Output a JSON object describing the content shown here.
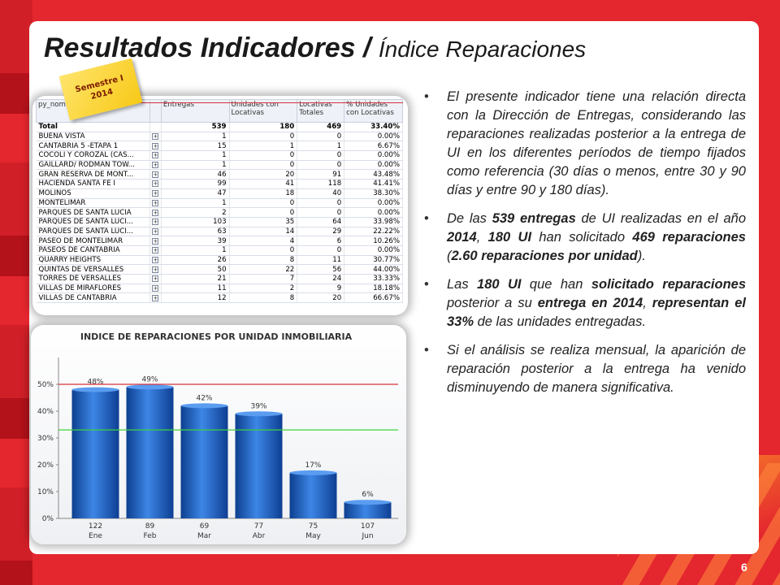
{
  "slide": {
    "title_main": "Resultados Indicadores / ",
    "title_sub": "Índice Reparaciones",
    "page_number": "6"
  },
  "note": {
    "line1": "Semestre I",
    "line2": "2014"
  },
  "table": {
    "headers": [
      "py_nombre",
      "",
      "Entregas",
      "Unidades con Locativas",
      "Locativas Totales",
      "% Unidades con Locativas"
    ],
    "rows": [
      {
        "name": "Total",
        "entregas": "539",
        "unidades": "180",
        "locativas": "469",
        "pct": "33.40%",
        "total": true
      },
      {
        "name": "BUENA VISTA",
        "entregas": "1",
        "unidades": "0",
        "locativas": "0",
        "pct": "0.00%"
      },
      {
        "name": "CANTABRIA 5 -ETAPA 1",
        "entregas": "15",
        "unidades": "1",
        "locativas": "1",
        "pct": "6.67%"
      },
      {
        "name": "COCOLI Y COROZAL (CAS...",
        "entregas": "1",
        "unidades": "0",
        "locativas": "0",
        "pct": "0.00%"
      },
      {
        "name": "GAILLARD/ RODMAN TOW...",
        "entregas": "1",
        "unidades": "0",
        "locativas": "0",
        "pct": "0.00%"
      },
      {
        "name": "GRAN RESERVA DE MONT...",
        "entregas": "46",
        "unidades": "20",
        "locativas": "91",
        "pct": "43.48%"
      },
      {
        "name": "HACIENDA SANTA FE I",
        "entregas": "99",
        "unidades": "41",
        "locativas": "118",
        "pct": "41.41%"
      },
      {
        "name": "MOLINOS",
        "entregas": "47",
        "unidades": "18",
        "locativas": "40",
        "pct": "38.30%"
      },
      {
        "name": "MONTELIMAR",
        "entregas": "1",
        "unidades": "0",
        "locativas": "0",
        "pct": "0.00%"
      },
      {
        "name": "PARQUES DE SANTA LUCIA",
        "entregas": "2",
        "unidades": "0",
        "locativas": "0",
        "pct": "0.00%"
      },
      {
        "name": "PARQUES DE SANTA LUCI...",
        "entregas": "103",
        "unidades": "35",
        "locativas": "64",
        "pct": "33.98%"
      },
      {
        "name": "PARQUES DE SANTA LUCI...",
        "entregas": "63",
        "unidades": "14",
        "locativas": "29",
        "pct": "22.22%"
      },
      {
        "name": "PASEO DE MONTELIMAR",
        "entregas": "39",
        "unidades": "4",
        "locativas": "6",
        "pct": "10.26%"
      },
      {
        "name": "PASEOS DE CANTABRIA",
        "entregas": "1",
        "unidades": "0",
        "locativas": "0",
        "pct": "0.00%"
      },
      {
        "name": "QUARRY HEIGHTS",
        "entregas": "26",
        "unidades": "8",
        "locativas": "11",
        "pct": "30.77%"
      },
      {
        "name": "QUINTAS DE VERSALLES",
        "entregas": "50",
        "unidades": "22",
        "locativas": "56",
        "pct": "44.00%"
      },
      {
        "name": "TORRES DE VERSALLES",
        "entregas": "21",
        "unidades": "7",
        "locativas": "24",
        "pct": "33.33%"
      },
      {
        "name": "VILLAS DE MIRAFLORES",
        "entregas": "11",
        "unidades": "2",
        "locativas": "9",
        "pct": "18.18%"
      },
      {
        "name": "VILLAS DE CANTABRIA",
        "entregas": "12",
        "unidades": "8",
        "locativas": "20",
        "pct": "66.67%"
      }
    ]
  },
  "chart_data": {
    "type": "bar",
    "title": "INDICE DE REPARACIONES POR UNIDAD INMOBILIARIA",
    "categories": [
      "Ene",
      "Feb",
      "Mar",
      "Abr",
      "May",
      "Jun"
    ],
    "counts": [
      "122",
      "89",
      "69",
      "77",
      "75",
      "107"
    ],
    "values": [
      48,
      49,
      42,
      39,
      17,
      6
    ],
    "value_labels": [
      "48%",
      "49%",
      "42%",
      "39%",
      "17%",
      "6%"
    ],
    "ylim": [
      0,
      60
    ],
    "yticks": [
      0,
      10,
      20,
      30,
      40,
      50
    ],
    "ytick_labels": [
      "0%",
      "10%",
      "20%",
      "30%",
      "40%",
      "50%"
    ],
    "reference_lines": [
      {
        "value": 50,
        "color": "#d8323a"
      },
      {
        "value": 33,
        "color": "#3bd23b"
      }
    ],
    "bar_color": "#1f64c8",
    "xlabel": "",
    "ylabel": ""
  },
  "bullets": [
    {
      "html_parts": [
        {
          "t": "El presente indicador tiene una relación directa con la Dirección de Entregas, considerando las reparaciones realizadas posterior a la entrega de UI en los diferentes períodos de tiempo fijados como referencia (30 días o menos, entre 30 y 90 días y entre 90 y 180 días).",
          "b": false
        }
      ]
    },
    {
      "html_parts": [
        {
          "t": "De las ",
          "b": false
        },
        {
          "t": "539 entregas",
          "b": true
        },
        {
          "t": " de UI realizadas en el año ",
          "b": false
        },
        {
          "t": "2014",
          "b": true
        },
        {
          "t": ", ",
          "b": false
        },
        {
          "t": "180 UI",
          "b": true
        },
        {
          "t": " han solicitado ",
          "b": false
        },
        {
          "t": "469 reparaciones",
          "b": true
        },
        {
          "t": " (",
          "b": false
        },
        {
          "t": "2.60 reparaciones por unidad",
          "b": true
        },
        {
          "t": ").",
          "b": false
        }
      ]
    },
    {
      "html_parts": [
        {
          "t": "Las ",
          "b": false
        },
        {
          "t": "180 UI",
          "b": true
        },
        {
          "t": " que han ",
          "b": false
        },
        {
          "t": "solicitado reparaciones",
          "b": true
        },
        {
          "t": " posterior a su ",
          "b": false
        },
        {
          "t": "entrega en 2014",
          "b": true
        },
        {
          "t": ", ",
          "b": false
        },
        {
          "t": "representan el 33%",
          "b": true
        },
        {
          "t": " de las unidades entregadas.",
          "b": false
        }
      ]
    },
    {
      "html_parts": [
        {
          "t": "Si el análisis se realiza mensual, la aparición de reparación posterior a la entrega ha venido disminuyendo de manera significativa.",
          "b": false
        }
      ]
    }
  ],
  "colors": {
    "brand_red": "#e4262e",
    "bar_blue": "#1f64c8"
  }
}
